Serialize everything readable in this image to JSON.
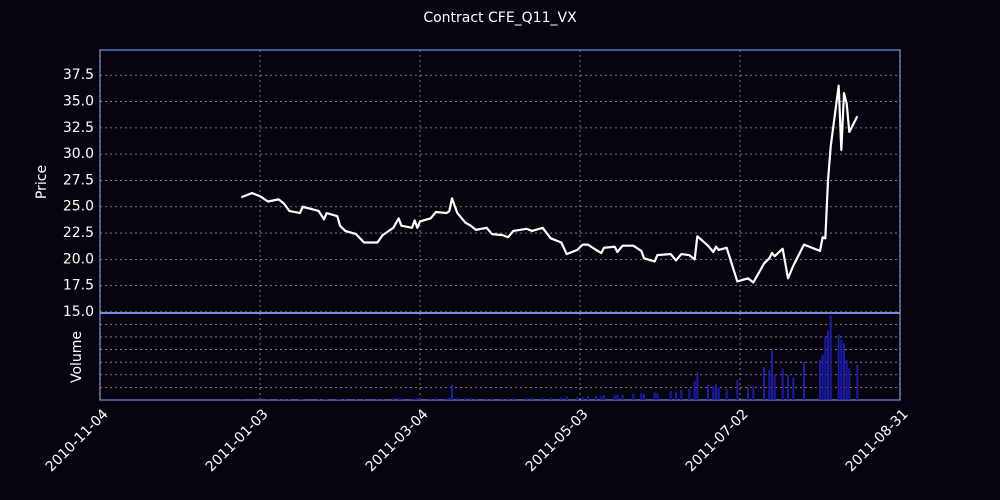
{
  "chart_data": [
    {
      "type": "line",
      "title": "Contract CFE_Q11_VX",
      "ylabel": "Price",
      "x": [
        "2010-12-27",
        "2010-12-31",
        "2011-01-03",
        "2011-01-06",
        "2011-01-10",
        "2011-01-12",
        "2011-01-14",
        "2011-01-18",
        "2011-01-19",
        "2011-01-25",
        "2011-01-27",
        "2011-01-28",
        "2011-02-01",
        "2011-02-02",
        "2011-02-04",
        "2011-02-08",
        "2011-02-11",
        "2011-02-16",
        "2011-02-18",
        "2011-02-22",
        "2011-02-24",
        "2011-02-25",
        "2011-03-01",
        "2011-03-02",
        "2011-03-03",
        "2011-03-04",
        "2011-03-08",
        "2011-03-10",
        "2011-03-14",
        "2011-03-15",
        "2011-03-16",
        "2011-03-18",
        "2011-03-21",
        "2011-03-23",
        "2011-03-25",
        "2011-03-29",
        "2011-03-31",
        "2011-04-04",
        "2011-04-06",
        "2011-04-08",
        "2011-04-13",
        "2011-04-15",
        "2011-04-19",
        "2011-04-22",
        "2011-04-26",
        "2011-04-28",
        "2011-05-02",
        "2011-05-04",
        "2011-05-06",
        "2011-05-09",
        "2011-05-11",
        "2011-05-12",
        "2011-05-16",
        "2011-05-17",
        "2011-05-19",
        "2011-05-23",
        "2011-05-26",
        "2011-05-27",
        "2011-05-31",
        "2011-06-01",
        "2011-06-06",
        "2011-06-08",
        "2011-06-10",
        "2011-06-13",
        "2011-06-15",
        "2011-06-16",
        "2011-06-20",
        "2011-06-22",
        "2011-06-23",
        "2011-06-24",
        "2011-06-27",
        "2011-07-01",
        "2011-07-05",
        "2011-07-07",
        "2011-07-11",
        "2011-07-13",
        "2011-07-14",
        "2011-07-15",
        "2011-07-18",
        "2011-07-20",
        "2011-07-22",
        "2011-07-26",
        "2011-08-01",
        "2011-08-02",
        "2011-08-03",
        "2011-08-04",
        "2011-08-05",
        "2011-08-08",
        "2011-08-09",
        "2011-08-10",
        "2011-08-11",
        "2011-08-12",
        "2011-08-15"
      ],
      "series": [
        {
          "name": "Price",
          "color": "#ffffff",
          "values": [
            25.9,
            26.3,
            26.0,
            25.5,
            25.7,
            25.3,
            24.6,
            24.4,
            25.0,
            24.6,
            23.8,
            24.4,
            24.1,
            23.2,
            22.7,
            22.4,
            21.6,
            21.6,
            22.3,
            23.0,
            23.9,
            23.2,
            23.0,
            23.7,
            23.0,
            23.6,
            23.9,
            24.5,
            24.4,
            24.6,
            25.8,
            24.4,
            23.5,
            23.2,
            22.8,
            23.0,
            22.4,
            22.3,
            22.1,
            22.7,
            22.9,
            22.7,
            23.0,
            22.0,
            21.6,
            20.5,
            20.9,
            21.4,
            21.4,
            20.9,
            20.6,
            21.1,
            21.2,
            20.7,
            21.3,
            21.3,
            20.8,
            20.1,
            19.8,
            20.4,
            20.5,
            19.9,
            20.5,
            20.4,
            20.0,
            22.2,
            21.3,
            20.7,
            21.2,
            20.9,
            21.1,
            17.9,
            18.2,
            17.8,
            19.6,
            20.1,
            20.6,
            20.3,
            21.0,
            18.2,
            19.4,
            21.4,
            20.8,
            22.1,
            22.0,
            27.5,
            30.7,
            36.5,
            30.4,
            35.8,
            34.8,
            32.1,
            33.6
          ]
        }
      ],
      "xlim": [
        "2010-11-04",
        "2011-08-31"
      ],
      "ylim": [
        14.9,
        39.9
      ],
      "yticks": [
        {
          "value": 15,
          "label": "15.0"
        },
        17.5,
        {
          "value": 20,
          "label": "20.0"
        },
        22.5,
        {
          "value": 25,
          "label": "25.0"
        },
        27.5,
        {
          "value": 30,
          "label": "30.0"
        },
        32.5,
        {
          "value": 35,
          "label": "35.0"
        },
        37.5
      ],
      "xticks": [
        "2010-11-04",
        "2011-01-03",
        "2011-03-04",
        "2011-05-03",
        "2011-07-02",
        "2011-08-31"
      ],
      "grid": true
    },
    {
      "type": "bar",
      "ylabel": "Volume",
      "x": [
        "2010-12-27",
        "2010-12-31",
        "2011-01-03",
        "2011-01-06",
        "2011-01-10",
        "2011-01-12",
        "2011-01-14",
        "2011-01-18",
        "2011-01-19",
        "2011-01-25",
        "2011-01-27",
        "2011-01-28",
        "2011-02-01",
        "2011-02-02",
        "2011-02-04",
        "2011-02-08",
        "2011-02-11",
        "2011-02-16",
        "2011-02-18",
        "2011-02-22",
        "2011-02-24",
        "2011-02-25",
        "2011-03-01",
        "2011-03-02",
        "2011-03-03",
        "2011-03-04",
        "2011-03-08",
        "2011-03-10",
        "2011-03-14",
        "2011-03-15",
        "2011-03-16",
        "2011-03-18",
        "2011-03-21",
        "2011-03-23",
        "2011-03-25",
        "2011-03-29",
        "2011-03-31",
        "2011-04-04",
        "2011-04-06",
        "2011-04-08",
        "2011-04-13",
        "2011-04-15",
        "2011-04-19",
        "2011-04-22",
        "2011-04-26",
        "2011-04-28",
        "2011-05-02",
        "2011-05-04",
        "2011-05-06",
        "2011-05-09",
        "2011-05-11",
        "2011-05-12",
        "2011-05-16",
        "2011-05-17",
        "2011-05-19",
        "2011-05-23",
        "2011-05-26",
        "2011-05-27",
        "2011-05-31",
        "2011-06-01",
        "2011-06-06",
        "2011-06-08",
        "2011-06-10",
        "2011-06-13",
        "2011-06-15",
        "2011-06-16",
        "2011-06-20",
        "2011-06-22",
        "2011-06-23",
        "2011-06-24",
        "2011-06-27",
        "2011-07-01",
        "2011-07-05",
        "2011-07-07",
        "2011-07-11",
        "2011-07-13",
        "2011-07-14",
        "2011-07-15",
        "2011-07-18",
        "2011-07-20",
        "2011-07-22",
        "2011-07-26",
        "2011-08-01",
        "2011-08-02",
        "2011-08-03",
        "2011-08-04",
        "2011-08-05",
        "2011-08-08",
        "2011-08-09",
        "2011-08-10",
        "2011-08-11",
        "2011-08-12",
        "2011-08-15"
      ],
      "color": "#1c1ca8",
      "values": [
        20,
        10,
        30,
        20,
        40,
        30,
        50,
        40,
        30,
        60,
        50,
        40,
        60,
        50,
        70,
        60,
        80,
        70,
        90,
        150,
        120,
        100,
        110,
        90,
        130,
        120,
        100,
        150,
        120,
        200,
        1200,
        180,
        150,
        130,
        110,
        100,
        120,
        110,
        130,
        150,
        140,
        160,
        180,
        200,
        220,
        300,
        250,
        280,
        300,
        350,
        320,
        400,
        380,
        450,
        420,
        500,
        550,
        480,
        600,
        550,
        700,
        650,
        800,
        900,
        1500,
        2200,
        1200,
        1100,
        1300,
        1000,
        900,
        1600,
        1000,
        1100,
        2600,
        2400,
        3900,
        2000,
        2500,
        2000,
        1800,
        3000,
        3200,
        3600,
        5000,
        5500,
        6700,
        5200,
        4800,
        4500,
        3200,
        2500,
        2800
      ],
      "xlim": [
        "2010-11-04",
        "2011-08-31"
      ],
      "ylim": [
        0,
        6900
      ],
      "yticks": [
        1000,
        2000,
        3000,
        4000,
        5000,
        6000
      ],
      "xticks": [
        "2010-11-04",
        "2011-01-03",
        "2011-03-04",
        "2011-05-03",
        "2011-07-02",
        "2011-08-31"
      ],
      "grid": true
    }
  ]
}
